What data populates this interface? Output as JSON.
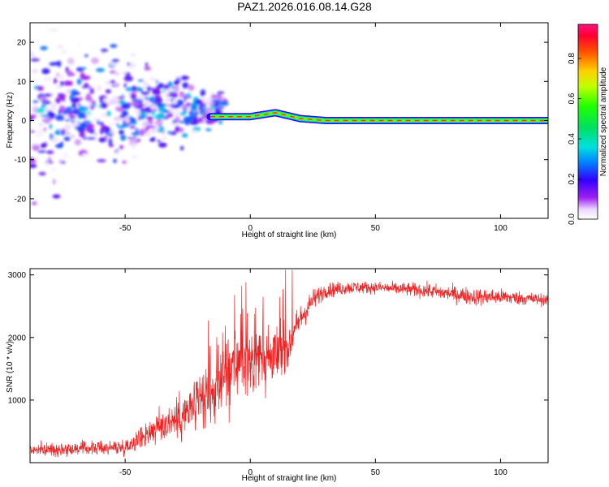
{
  "title": "PAZ1.2026.016.08.14.G28",
  "colors": {
    "line": "#ee2222",
    "axis": "#000000",
    "ridge": "#ff3030"
  },
  "chart_data": [
    {
      "type": "heatmap",
      "name": "spectrogram",
      "xlabel": "Height of straight line (km)",
      "ylabel": "Frequency (Hz)",
      "xlim": [
        -88,
        119
      ],
      "ylim": [
        -25,
        25
      ],
      "xticks": [
        -50,
        0,
        50,
        100
      ],
      "xtick_labels": [
        "-50",
        "0",
        "50",
        "100"
      ],
      "yticks": [
        -20,
        -10,
        0,
        10,
        20
      ],
      "ytick_labels": [
        "-20",
        "-10",
        "0",
        "10",
        "20"
      ],
      "colorbar": {
        "label": "Normalized spectral amplitude",
        "range": [
          0,
          0.97
        ],
        "ticks": [
          0,
          0.2,
          0.4,
          0.6,
          0.8
        ],
        "tick_labels": [
          "0.0",
          "0.2",
          "0.4",
          "0.6",
          "0.8"
        ]
      },
      "ridge": {
        "x": [
          -15,
          0,
          10,
          20,
          30,
          119
        ],
        "y": [
          1,
          1,
          2,
          0.5,
          0,
          0
        ]
      },
      "ridge_amplitude": 0.9,
      "scatter_amplitude_range": [
        0.02,
        0.35
      ],
      "scatter_x_range": [
        -88,
        -10
      ],
      "scatter_y_range": [
        -25,
        25
      ]
    },
    {
      "type": "line",
      "name": "snr",
      "xlabel": "Height of straight line (km)",
      "ylabel": "SNR (10 * v/v)",
      "xlim": [
        -88,
        119
      ],
      "ylim": [
        0,
        3100
      ],
      "xticks": [
        -50,
        0,
        50,
        100
      ],
      "xtick_labels": [
        "-50",
        "0",
        "50",
        "100"
      ],
      "yticks": [
        1000,
        2000,
        3000
      ],
      "ytick_labels": [
        "1000",
        "2000",
        "3000"
      ],
      "trend": {
        "x": [
          -88,
          -50,
          -40,
          -25,
          -15,
          -10,
          -5,
          0,
          10,
          15,
          20,
          25,
          30,
          40,
          50,
          70,
          90,
          100,
          119
        ],
        "y": [
          200,
          250,
          500,
          800,
          1100,
          1400,
          1600,
          1700,
          1700,
          1850,
          2300,
          2600,
          2750,
          2800,
          2800,
          2750,
          2650,
          2650,
          2600
        ]
      },
      "noise": {
        "x": [
          -88,
          -50,
          -40,
          -25,
          -15,
          -10,
          -5,
          0,
          10,
          20,
          30,
          50,
          90,
          119
        ],
        "y": [
          80,
          100,
          200,
          350,
          450,
          500,
          500,
          450,
          400,
          200,
          100,
          80,
          120,
          80
        ]
      }
    }
  ]
}
